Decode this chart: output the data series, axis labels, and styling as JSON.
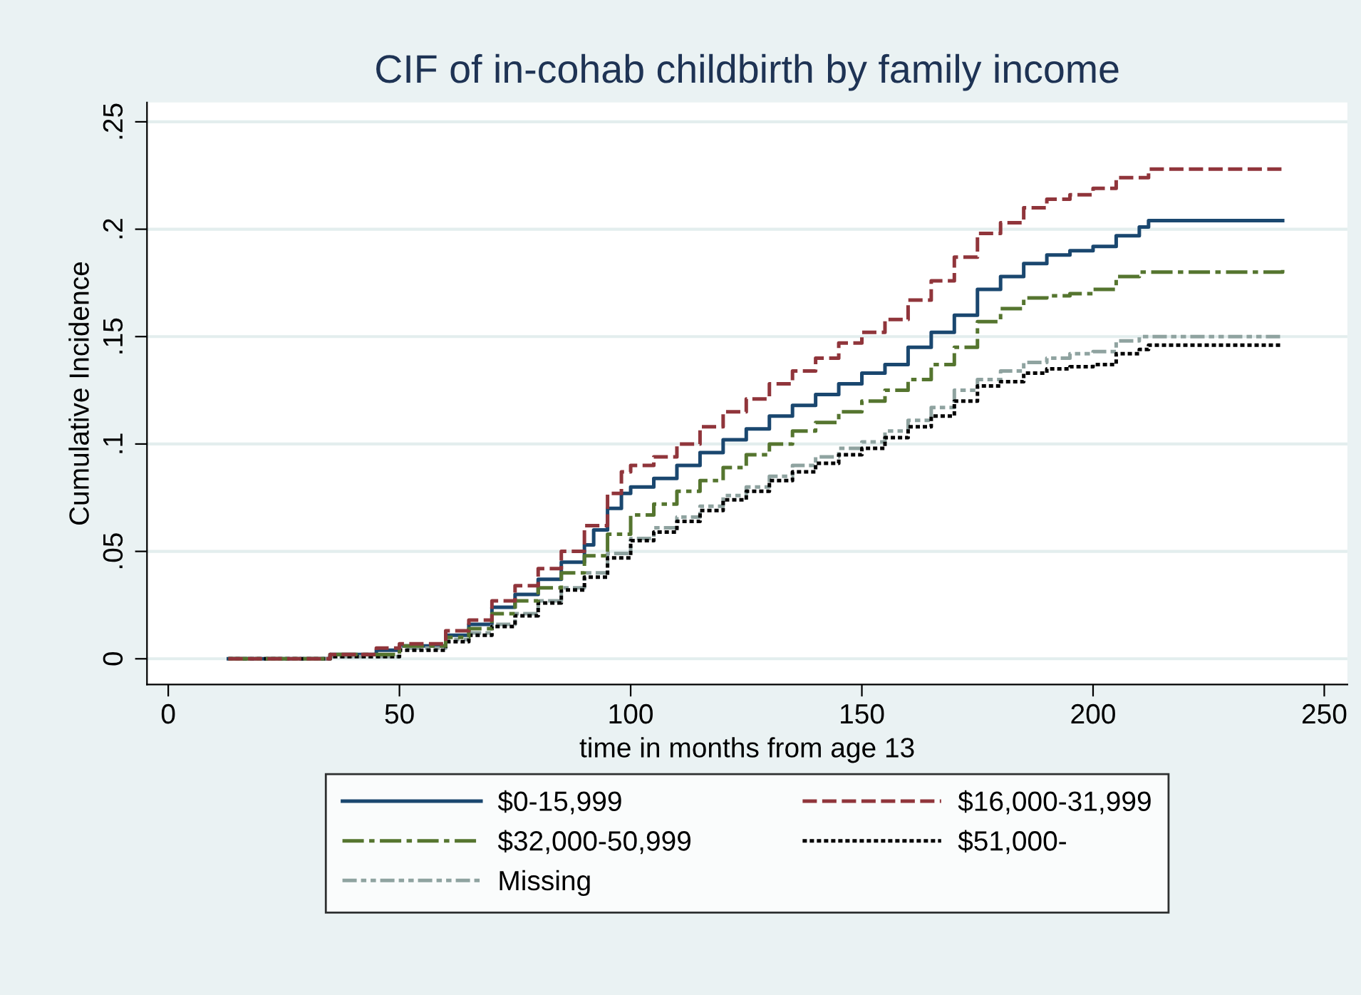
{
  "chart_data": {
    "type": "step",
    "title": "CIF of in-cohab childbirth by family income",
    "xlabel": "time in months from age 13",
    "ylabel": "Cumulative Incidence",
    "xlim": [
      -4.6,
      255
    ],
    "xticks": [
      0,
      50,
      100,
      150,
      200,
      250
    ],
    "ylim": [
      -0.012,
      0.259
    ],
    "yticks": [
      {
        "value": 0,
        "label": "0"
      },
      {
        "value": 0.05,
        "label": ".05"
      },
      {
        "value": 0.1,
        "label": ".1"
      },
      {
        "value": 0.15,
        "label": ".15"
      },
      {
        "value": 0.2,
        "label": ".2"
      },
      {
        "value": 0.25,
        "label": ".25"
      }
    ],
    "grid": "y",
    "legend": "bottom",
    "series": [
      {
        "name": "$0-15,999",
        "color": "#1a476f",
        "line_style": "solid",
        "x": [
          13,
          30,
          35,
          45,
          50,
          60,
          65,
          70,
          75,
          80,
          85,
          90,
          92,
          95,
          98,
          100,
          105,
          110,
          115,
          120,
          125,
          130,
          135,
          140,
          145,
          150,
          155,
          160,
          165,
          170,
          175,
          180,
          185,
          190,
          195,
          200,
          205,
          210,
          212,
          241
        ],
        "values": [
          0,
          0,
          0.002,
          0.004,
          0.006,
          0.011,
          0.016,
          0.024,
          0.03,
          0.037,
          0.045,
          0.053,
          0.06,
          0.07,
          0.077,
          0.08,
          0.084,
          0.09,
          0.096,
          0.102,
          0.107,
          0.113,
          0.118,
          0.123,
          0.128,
          0.133,
          0.137,
          0.145,
          0.152,
          0.16,
          0.172,
          0.178,
          0.184,
          0.188,
          0.19,
          0.192,
          0.197,
          0.201,
          0.204,
          0.204
        ]
      },
      {
        "name": "$16,000-31,999",
        "color": "#90353b",
        "line_style": "dashed",
        "x": [
          13,
          30,
          35,
          45,
          50,
          60,
          65,
          70,
          75,
          80,
          85,
          90,
          95,
          98,
          100,
          105,
          110,
          115,
          120,
          125,
          130,
          135,
          140,
          145,
          150,
          155,
          160,
          165,
          170,
          175,
          180,
          185,
          190,
          195,
          200,
          205,
          210,
          212,
          241
        ],
        "values": [
          0,
          0,
          0.002,
          0.005,
          0.007,
          0.013,
          0.018,
          0.027,
          0.034,
          0.042,
          0.05,
          0.062,
          0.077,
          0.087,
          0.09,
          0.094,
          0.1,
          0.108,
          0.115,
          0.121,
          0.128,
          0.134,
          0.14,
          0.147,
          0.152,
          0.158,
          0.167,
          0.176,
          0.187,
          0.198,
          0.203,
          0.21,
          0.214,
          0.216,
          0.219,
          0.224,
          0.224,
          0.228,
          0.228
        ]
      },
      {
        "name": "$32,000-50,999",
        "color": "#55752f",
        "line_style": "dashdot",
        "x": [
          13,
          30,
          35,
          50,
          60,
          65,
          70,
          75,
          80,
          85,
          90,
          95,
          100,
          105,
          110,
          115,
          120,
          125,
          130,
          135,
          140,
          145,
          150,
          155,
          160,
          165,
          170,
          175,
          180,
          185,
          190,
          195,
          200,
          205,
          210,
          241
        ],
        "values": [
          0,
          0,
          0.002,
          0.006,
          0.01,
          0.014,
          0.021,
          0.027,
          0.033,
          0.04,
          0.048,
          0.058,
          0.067,
          0.072,
          0.078,
          0.083,
          0.089,
          0.095,
          0.1,
          0.106,
          0.11,
          0.115,
          0.12,
          0.125,
          0.13,
          0.137,
          0.145,
          0.157,
          0.163,
          0.168,
          0.169,
          0.17,
          0.172,
          0.178,
          0.18,
          0.181
        ]
      },
      {
        "name": "$51,000-",
        "color": "#000000",
        "line_style": "dotted",
        "x": [
          13,
          30,
          35,
          50,
          60,
          65,
          70,
          75,
          80,
          85,
          90,
          95,
          100,
          105,
          110,
          115,
          120,
          125,
          130,
          135,
          140,
          145,
          150,
          155,
          160,
          165,
          170,
          175,
          180,
          185,
          190,
          195,
          200,
          205,
          210,
          212,
          241
        ],
        "values": [
          0,
          0,
          0.001,
          0.004,
          0.008,
          0.011,
          0.015,
          0.02,
          0.026,
          0.032,
          0.038,
          0.047,
          0.055,
          0.059,
          0.064,
          0.069,
          0.074,
          0.078,
          0.083,
          0.087,
          0.091,
          0.095,
          0.098,
          0.103,
          0.108,
          0.113,
          0.12,
          0.127,
          0.129,
          0.133,
          0.135,
          0.136,
          0.137,
          0.142,
          0.144,
          0.146,
          0.146
        ]
      },
      {
        "name": "Missing",
        "color": "#8fa3a0",
        "line_style": "dashdotdot",
        "x": [
          13,
          30,
          35,
          50,
          60,
          65,
          70,
          75,
          80,
          85,
          90,
          95,
          100,
          105,
          110,
          115,
          120,
          125,
          130,
          135,
          140,
          145,
          150,
          155,
          160,
          165,
          170,
          175,
          180,
          185,
          190,
          195,
          200,
          205,
          210,
          241
        ],
        "values": [
          0,
          0,
          0.001,
          0.005,
          0.009,
          0.012,
          0.016,
          0.021,
          0.027,
          0.033,
          0.04,
          0.049,
          0.056,
          0.061,
          0.066,
          0.071,
          0.076,
          0.08,
          0.085,
          0.09,
          0.094,
          0.098,
          0.101,
          0.106,
          0.111,
          0.117,
          0.125,
          0.13,
          0.134,
          0.138,
          0.14,
          0.142,
          0.143,
          0.148,
          0.15,
          0.15
        ]
      }
    ]
  }
}
